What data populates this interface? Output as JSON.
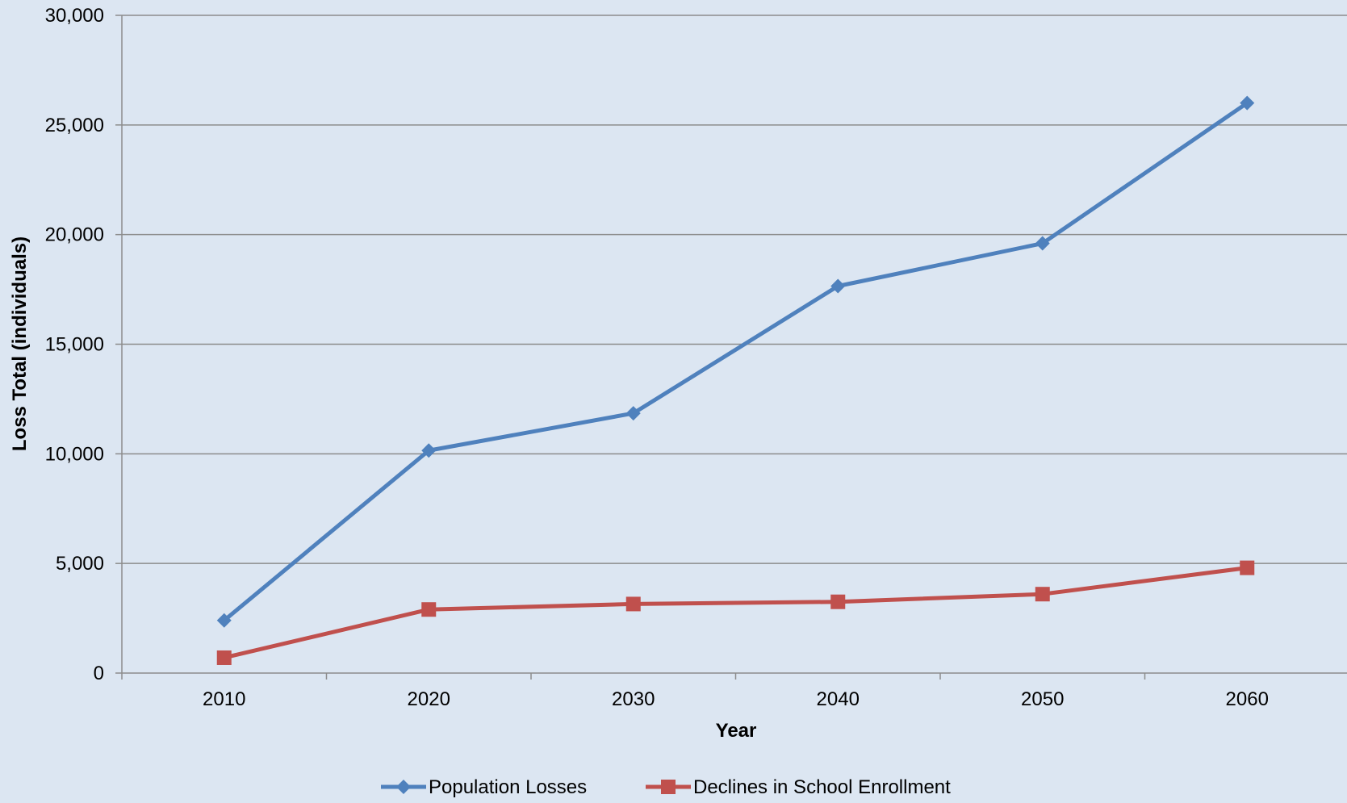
{
  "colors": {
    "background": "#dce6f2",
    "gridline": "#8c8c8c",
    "axis": "#8c8c8c",
    "text": "#000000"
  },
  "chart_data": {
    "type": "line",
    "title": "",
    "xlabel": "Year",
    "ylabel": "Loss Total (individuals)",
    "x": [
      2010,
      2020,
      2030,
      2040,
      2050,
      2060
    ],
    "x_tick_labels": [
      "2010",
      "2020",
      "2030",
      "2040",
      "2050",
      "2060"
    ],
    "ylim": [
      0,
      30000
    ],
    "y_tick_labels": [
      "0",
      "5,000",
      "10,000",
      "15,000",
      "20,000",
      "25,000",
      "30,000"
    ],
    "grid": true,
    "legend_position": "bottom",
    "series": [
      {
        "name": "Population Losses",
        "color": "#4f81bd",
        "marker": "diamond",
        "values": [
          2400,
          10150,
          11850,
          17650,
          19600,
          26000
        ]
      },
      {
        "name": "Declines in School Enrollment",
        "color": "#c0504d",
        "marker": "square",
        "values": [
          700,
          2900,
          3150,
          3250,
          3600,
          4800
        ]
      }
    ]
  }
}
